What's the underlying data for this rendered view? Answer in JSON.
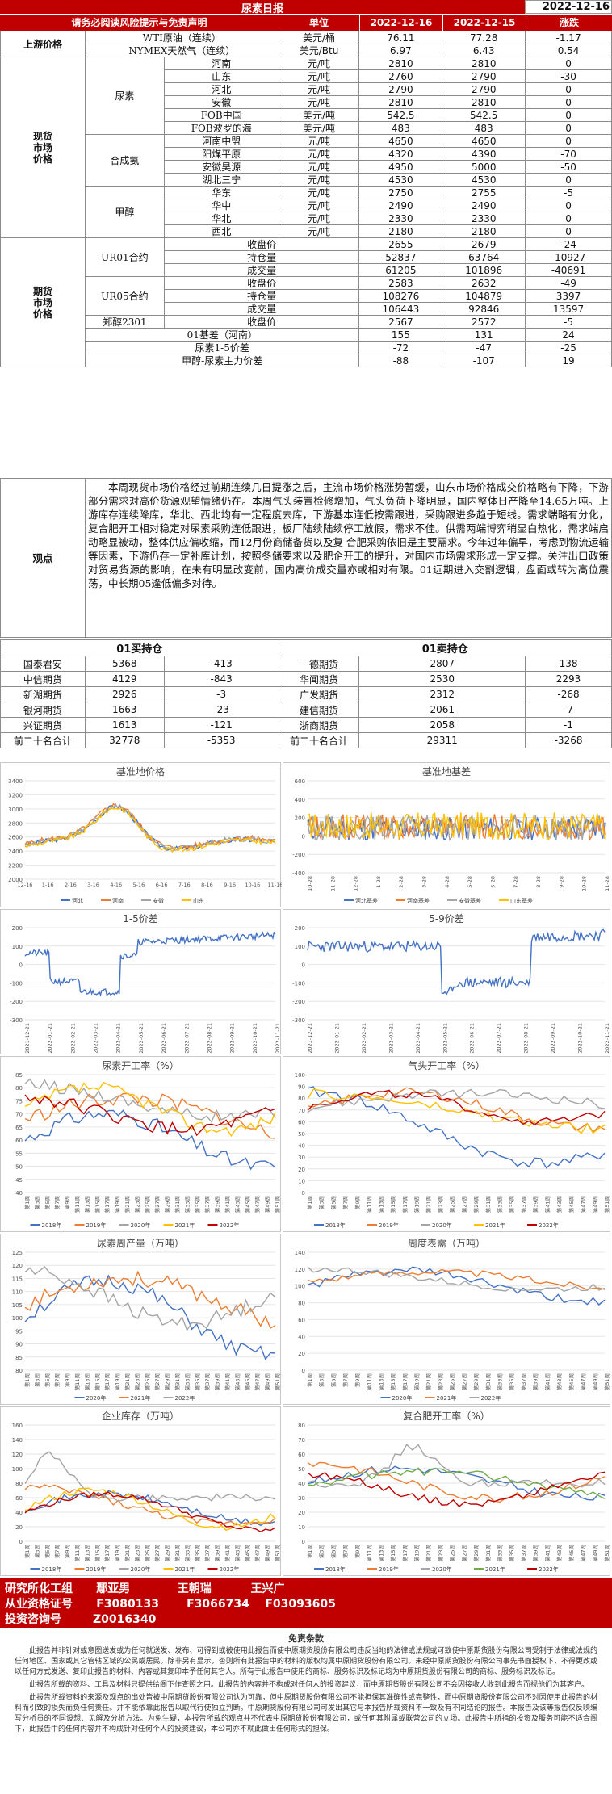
{
  "header": {
    "title": "尿素日报",
    "date": "2022-12-16",
    "risk": "请务必阅读风险提示与免责声明",
    "col_unit": "单位",
    "col_d1": "2022-12-16",
    "col_d2": "2022-12-15",
    "col_chg": "涨跌"
  },
  "upstream": {
    "label": "上游价格",
    "rows": [
      [
        "WTI原油（连续）",
        "美元/桶",
        "76.11",
        "77.28",
        "-1.17"
      ],
      [
        "NYMEX天然气（连续）",
        "美元/Btu",
        "6.97",
        "6.43",
        "0.54"
      ]
    ]
  },
  "spot": {
    "label": "现货市场价格",
    "groups": [
      {
        "name": "尿素",
        "rows": [
          [
            "河南",
            "元/吨",
            "2810",
            "2810",
            "0"
          ],
          [
            "山东",
            "元/吨",
            "2760",
            "2790",
            "-30"
          ],
          [
            "河北",
            "元/吨",
            "2790",
            "2790",
            "0"
          ],
          [
            "安徽",
            "元/吨",
            "2810",
            "2810",
            "0"
          ],
          [
            "FOB中国",
            "美元/吨",
            "542.5",
            "542.5",
            "0"
          ],
          [
            "FOB波罗的海",
            "美元/吨",
            "483",
            "483",
            "0"
          ]
        ]
      },
      {
        "name": "合成氨",
        "rows": [
          [
            "河南中盟",
            "元/吨",
            "4650",
            "4650",
            "0"
          ],
          [
            "阳煤平原",
            "元/吨",
            "4320",
            "4390",
            "-70"
          ],
          [
            "安徽昊源",
            "元/吨",
            "4950",
            "5000",
            "-50"
          ],
          [
            "湖北三宁",
            "元/吨",
            "4530",
            "4530",
            "0"
          ]
        ]
      },
      {
        "name": "甲醇",
        "rows": [
          [
            "华东",
            "元/吨",
            "2750",
            "2755",
            "-5"
          ],
          [
            "华中",
            "元/吨",
            "2490",
            "2490",
            "0"
          ],
          [
            "华北",
            "元/吨",
            "2330",
            "2330",
            "0"
          ],
          [
            "西北",
            "元/吨",
            "2180",
            "2180",
            "0"
          ]
        ]
      }
    ]
  },
  "futures": {
    "label": "期货市场价格",
    "groups": [
      {
        "name": "UR01合约",
        "rows": [
          [
            "收盘价",
            "2655",
            "2679",
            "-24"
          ],
          [
            "持仓量",
            "52837",
            "63764",
            "-10927"
          ],
          [
            "成交量",
            "61205",
            "101896",
            "-40691"
          ]
        ]
      },
      {
        "name": "UR05合约",
        "rows": [
          [
            "收盘价",
            "2583",
            "2632",
            "-49"
          ],
          [
            "持仓量",
            "108276",
            "104879",
            "3397"
          ],
          [
            "成交量",
            "106443",
            "92846",
            "13597"
          ]
        ]
      },
      {
        "name": "郑醇2301",
        "rows": [
          [
            "收盘价",
            "2567",
            "2572",
            "-5"
          ]
        ]
      }
    ],
    "spreads": [
      [
        "01基差（河南）",
        "155",
        "131",
        "24"
      ],
      [
        "尿素1-5价差",
        "-72",
        "-47",
        "-25"
      ],
      [
        "甲醇-尿素主力价差",
        "-88",
        "-107",
        "19"
      ]
    ]
  },
  "view": {
    "label": "观点",
    "text": "本周现货市场价格经过前期连续几日提涨之后，主流市场价格涨势暂缓，山东市场价格成交价格略有下降，下游部分需求对高价货源观望情绪仍在。本周气头装置检修增加，气头负荷下降明显，国内整体日产降至14.65万吨。上游库存连续降库，华北、西北均有一定程度去库，下游基本连低按需跟进，采购跟进多趋于短线。需求端略有分化，复合肥开工相对稳定对尿素采购连低跟进，板厂陆续陆续停工放假，需求不佳。供需两端博弈稍显白热化，需求端启动略显被动，整体供应偏收缩，而12月份商储备货以及复 合肥采购依旧是主要需求。今年过年偏早，考虑到物流运输等因素，下游仍存一定补库计划，按照冬储要求以及肥企开工的提升，对国内市场需求形成一定支撑。关注出口政策对贸易货源的影响，在未有明显改变前，国内高价成交量亦或相对有限。01远期进入交割逻辑，盘面或转为高位震荡，中长期05逢低偏多对待。"
  },
  "positions": {
    "buy_title": "01买持仓",
    "sell_title": "01卖持仓",
    "rows": [
      [
        "国泰君安",
        "5368",
        "-413",
        "一德期货",
        "2807",
        "138"
      ],
      [
        "中信期货",
        "4129",
        "-843",
        "华闻期货",
        "2530",
        "2293"
      ],
      [
        "新湖期货",
        "2926",
        "-3",
        "广发期货",
        "2312",
        "-268"
      ],
      [
        "银河期货",
        "1663",
        "-23",
        "建信期货",
        "2061",
        "-7"
      ],
      [
        "兴证期货",
        "1613",
        "-121",
        "浙商期货",
        "2058",
        "-1"
      ],
      [
        "前二十名合计",
        "32778",
        "-5353",
        "前二十名合计",
        "29311",
        "-3268"
      ]
    ]
  },
  "charts": {
    "c1": {
      "title": "基准地价格",
      "yticks": [
        "2000",
        "2200",
        "2400",
        "2600",
        "2800",
        "3000",
        "3200",
        "3400"
      ],
      "xticks": [
        "12-16",
        "1-16",
        "2-16",
        "3-16",
        "4-16",
        "5-16",
        "6-16",
        "7-16",
        "8-16",
        "9-16",
        "10-16",
        "11-16"
      ],
      "legend": [
        "河北",
        "河南",
        "安徽",
        "山东"
      ]
    },
    "c2": {
      "title": "基准地基差",
      "yticks": [
        "-400",
        "-200",
        "0",
        "200",
        "400",
        "600"
      ],
      "xticks": [
        "10-28",
        "11-28",
        "12-28",
        "1-28",
        "2-28",
        "3-28",
        "4-28",
        "5-28",
        "6-28",
        "7-28",
        "8-28",
        "9-28",
        "10-28",
        "11-28"
      ],
      "legend": [
        "河北基差",
        "河南基差",
        "安徽基差",
        "山东基差"
      ]
    },
    "c3": {
      "title": "1-5价差",
      "yticks": [
        "-300",
        "-200",
        "-100",
        "0",
        "100",
        "200"
      ],
      "xticks": [
        "2021-12-21",
        "2022-01-21",
        "2022-02-21",
        "2022-03-21",
        "2022-04-21",
        "2022-05-21",
        "2022-06-21",
        "2022-07-21",
        "2022-08-21",
        "2022-09-21",
        "2022-10-21",
        "2022-11-21"
      ]
    },
    "c4": {
      "title": "5-9价差",
      "yticks": [
        "-300",
        "-200",
        "-100",
        "0",
        "100",
        "200"
      ],
      "xticks": [
        "2021-12-21",
        "2022-01-21",
        "2022-02-21",
        "2022-03-21",
        "2022-04-21",
        "2022-05-21",
        "2022-06-21",
        "2022-07-21",
        "2022-08-21",
        "2022-09-21",
        "2022-10-21",
        "2022-11-21"
      ]
    },
    "c5": {
      "title": "尿素开工率（%）",
      "yticks": [
        "40",
        "45",
        "50",
        "55",
        "60",
        "65",
        "70",
        "75",
        "80",
        "85"
      ],
      "legend": [
        "2018年",
        "2019年",
        "2020年",
        "2021年",
        "2022年"
      ]
    },
    "c6": {
      "title": "气头开工率（%）",
      "yticks": [
        "0",
        "10",
        "20",
        "30",
        "40",
        "50",
        "60",
        "70",
        "80",
        "90",
        "100"
      ],
      "legend": [
        "2018年",
        "2019年",
        "2020年",
        "2021年",
        "2022年"
      ]
    },
    "c7": {
      "title": "尿素周产量（万吨）",
      "yticks": [
        "80",
        "85",
        "90",
        "95",
        "100",
        "105",
        "110",
        "115",
        "120",
        "125"
      ],
      "legend": [
        "2020年",
        "2021年",
        "2022年"
      ]
    },
    "c8": {
      "title": "周度表需（万吨）",
      "yticks": [
        "0",
        "20",
        "40",
        "60",
        "80",
        "100",
        "120",
        "140"
      ],
      "legend": [
        "2020年",
        "2021年",
        "2022年"
      ]
    },
    "c9": {
      "title": "企业库存（万吨）",
      "yticks": [
        "0",
        "20",
        "40",
        "60",
        "80",
        "100",
        "120",
        "140",
        "160"
      ],
      "legend": [
        "2018年",
        "2019年",
        "2020年",
        "2021年",
        "2022年"
      ]
    },
    "c10": {
      "title": "复合肥开工率（%）",
      "yticks": [
        "0",
        "10",
        "20",
        "30",
        "40",
        "50",
        "60",
        "70",
        "80"
      ],
      "legend": [
        "2018年",
        "2019年",
        "2020年",
        "2021年",
        "2022年"
      ]
    },
    "week_ticks": [
      "第1周",
      "第3周",
      "第5周",
      "第7周",
      "第9周",
      "第11周",
      "第13周",
      "第15周",
      "第17周",
      "第19周",
      "第21周",
      "第23周",
      "第25周",
      "第27周",
      "第29周",
      "第31周",
      "第33周",
      "第35周",
      "第37周",
      "第39周",
      "第41周",
      "第43周",
      "第45周",
      "第47周",
      "第49周",
      "第51周"
    ],
    "colors": {
      "blue": "#4472c4",
      "orange": "#ed7d31",
      "gray": "#a5a5a5",
      "yellow": "#ffc000",
      "red": "#c00000",
      "green": "#70ad47",
      "darkblue": "#2f5597"
    }
  },
  "footer": {
    "line1": "研究所化工组      鄢亚男            王朝瑞          王兴广",
    "line2": "从业资格证号      F3080133       F3066734    F03093605",
    "line3": "投资咨询号        Z0016340"
  },
  "disclaimer": {
    "title": "免责条款",
    "p1": "此报告并非针对或意图送发或为任何就送发、发布、可得到或被使用此报告而使中原期货股份有限公司违反当地的法律或法规或可致使中原期货股份有限公司受制于法律或法规的任何地区、国家或其它管辖区域的公民或居民。除非另有显示，否则所有此报告中的材料的版权均属中原期货股份有限公司。未经中原期货股份有限公司事先书面授权下，不得更改或以任何方式发送、复印此报告的材料、内容或其复印本予任何其它人。所有于此报告中使用的商标、服务标识及标记均为中原期货股份有限公司的商标、服务标识及标记。",
    "p2": "此报告所载的资料、工具及材料只提供给阁下作查照之用。此报告的内容并不构成对任何人的投资建议，而中原期货股份有限公司不会因接收人收到此报告而视他们为其客户。",
    "p3": "此报告所载资料的来源及观点的出处皆被中原期货股份有限公司认为可靠，但中原期货股份有限公司不能担保其准确性或完整性，而中原期货股份有限公司不对因使用此报告的材料而引致的损失而负任何责任。并不能依靠此报告以取代行使独立判断。中原期货股份有限公司可发出其它与本报告所载资料不一致及有不同结论的报告。本报告及该等报告仅反映编写分析员的不同设想、见解及分析方法。为免生疑，本报告所载的观点并不代表中原期货股份有限公司，或任何其附属或联营公司的立场。此报告中所指的投资及服务可能不适合阁下，此报告中的任何内容并不构成针对任何个人的投资建议，本公司亦不就此做出任何形式的担保。"
  }
}
